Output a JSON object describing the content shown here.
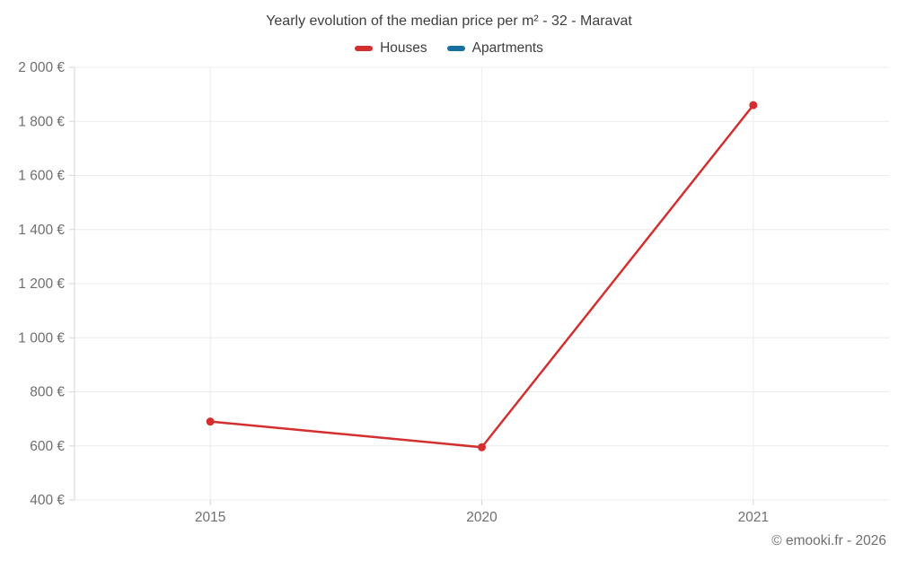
{
  "chart_data": {
    "type": "line",
    "title": "Yearly evolution of the median price per m² - 32 - Maravat",
    "categories": [
      "2015",
      "2020",
      "2021"
    ],
    "series": [
      {
        "name": "Houses",
        "color": "#d32f2f",
        "values": [
          690,
          595,
          1860
        ]
      },
      {
        "name": "Apartments",
        "color": "#1671a1",
        "values": [
          null,
          null,
          null
        ]
      }
    ],
    "ylim": [
      400,
      2000
    ],
    "y_ticks": [
      {
        "value": 400,
        "label": "400 €"
      },
      {
        "value": 600,
        "label": "600 €"
      },
      {
        "value": 800,
        "label": "800 €"
      },
      {
        "value": 1000,
        "label": "1 000 €"
      },
      {
        "value": 1200,
        "label": "1 200 €"
      },
      {
        "value": 1400,
        "label": "1 400 €"
      },
      {
        "value": 1600,
        "label": "1 600 €"
      },
      {
        "value": 1800,
        "label": "1 800 €"
      },
      {
        "value": 2000,
        "label": "2 000 €"
      }
    ],
    "grid": true,
    "legend_position": "top",
    "colors": {
      "gridline": "#ececec",
      "axis_line": "#d6d6d6",
      "axis_label": "#6f6f6f",
      "title_text": "#3e3e3e"
    }
  },
  "footer": {
    "credit": "© emooki.fr - 2026"
  }
}
